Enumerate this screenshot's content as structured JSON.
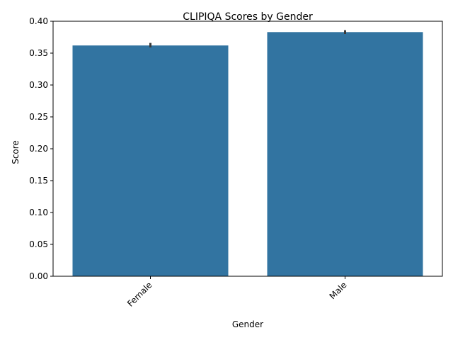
{
  "chart_data": {
    "type": "bar",
    "title": "CLIPIQA Scores by Gender",
    "xlabel": "Gender",
    "ylabel": "Score",
    "categories": [
      "Female",
      "Male"
    ],
    "values": [
      0.362,
      0.383
    ],
    "error_low": [
      0.359,
      0.38
    ],
    "error_high": [
      0.366,
      0.386
    ],
    "ylim": [
      0,
      0.4
    ],
    "yticks": [
      "0.00",
      "0.05",
      "0.10",
      "0.15",
      "0.20",
      "0.25",
      "0.30",
      "0.35",
      "0.40"
    ],
    "bar_color": "#3274a1",
    "error_color": "#3b3b3b",
    "grid": false,
    "legend": "none"
  }
}
